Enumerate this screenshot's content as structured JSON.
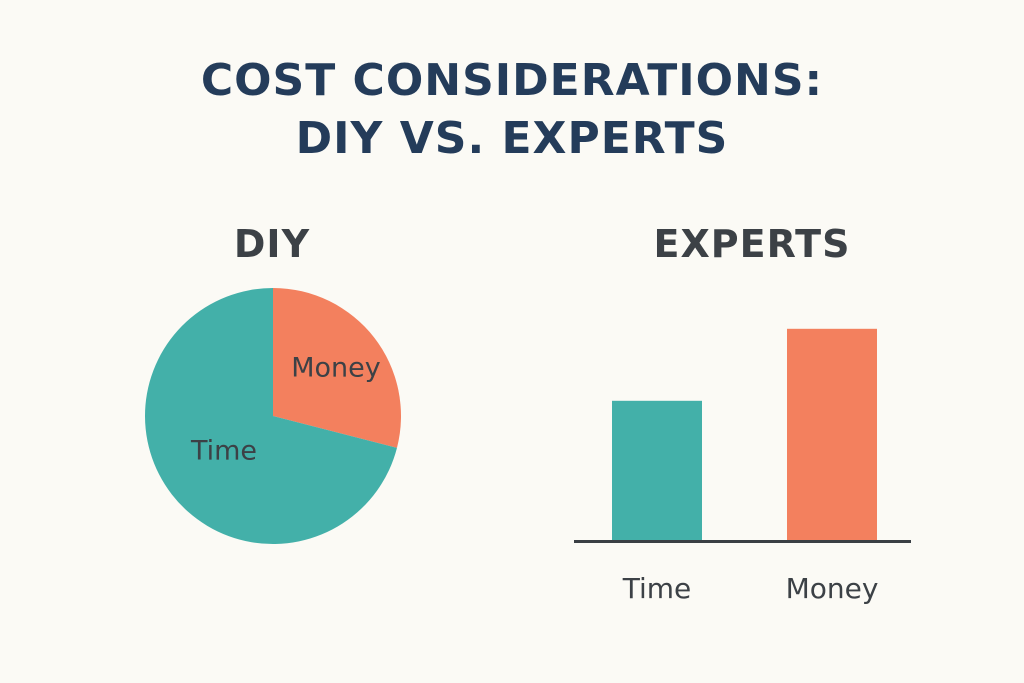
{
  "title": {
    "line1": "COST CONSIDERATIONS:",
    "line2": "DIY VS. EXPERTS"
  },
  "colors": {
    "time": "#43b0a9",
    "money": "#f3805e",
    "title": "#243c5a",
    "text": "#3c4146",
    "axis": "#3a3f44"
  },
  "chart_data": [
    {
      "type": "pie",
      "title": "DIY",
      "slices": [
        {
          "label": "Money",
          "value": 29,
          "color": "#f3805e"
        },
        {
          "label": "Time",
          "value": 71,
          "color": "#43b0a9"
        }
      ]
    },
    {
      "type": "bar",
      "title": "EXPERTS",
      "categories": [
        "Time",
        "Money"
      ],
      "values": [
        145,
        220
      ],
      "colors": [
        "#43b0a9",
        "#f3805e"
      ],
      "ylim": [
        0,
        250
      ]
    }
  ]
}
